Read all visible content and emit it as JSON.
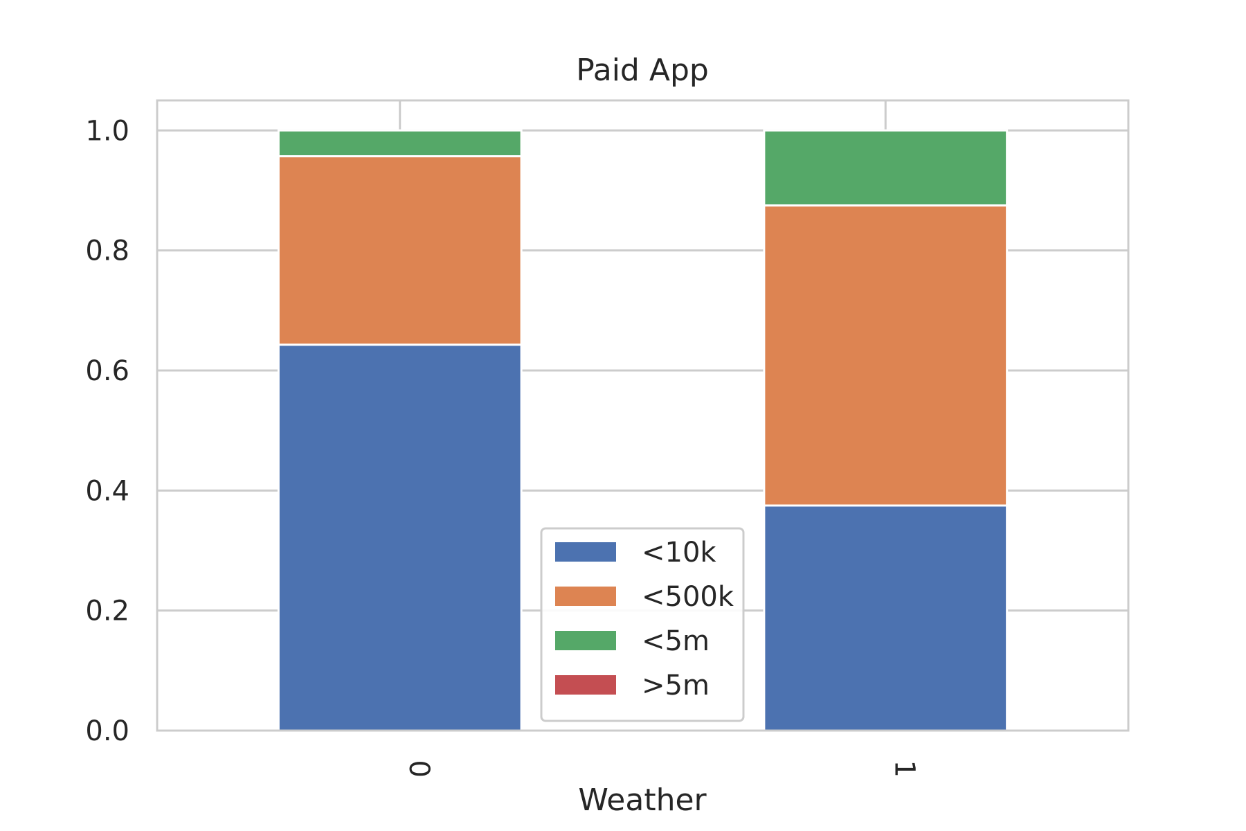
{
  "chart_data": {
    "type": "bar",
    "stacked": true,
    "title": "Paid App",
    "xlabel": "Weather",
    "ylabel": "",
    "categories": [
      "0",
      "1"
    ],
    "ylim": [
      0,
      1.05
    ],
    "yticks": [
      "0.0",
      "0.2",
      "0.4",
      "0.6",
      "0.8",
      "1.0"
    ],
    "grid": true,
    "legend_position": "lower center",
    "series": [
      {
        "name": "<10k",
        "values": [
          0.643,
          0.375
        ],
        "color": "#4c72b0"
      },
      {
        "name": "<500k",
        "values": [
          0.314,
          0.5
        ],
        "color": "#dd8452"
      },
      {
        "name": "<5m",
        "values": [
          0.043,
          0.125
        ],
        "color": "#55a868"
      },
      {
        "name": ">5m",
        "values": [
          0.0,
          0.0
        ],
        "color": "#c44e52"
      }
    ]
  }
}
